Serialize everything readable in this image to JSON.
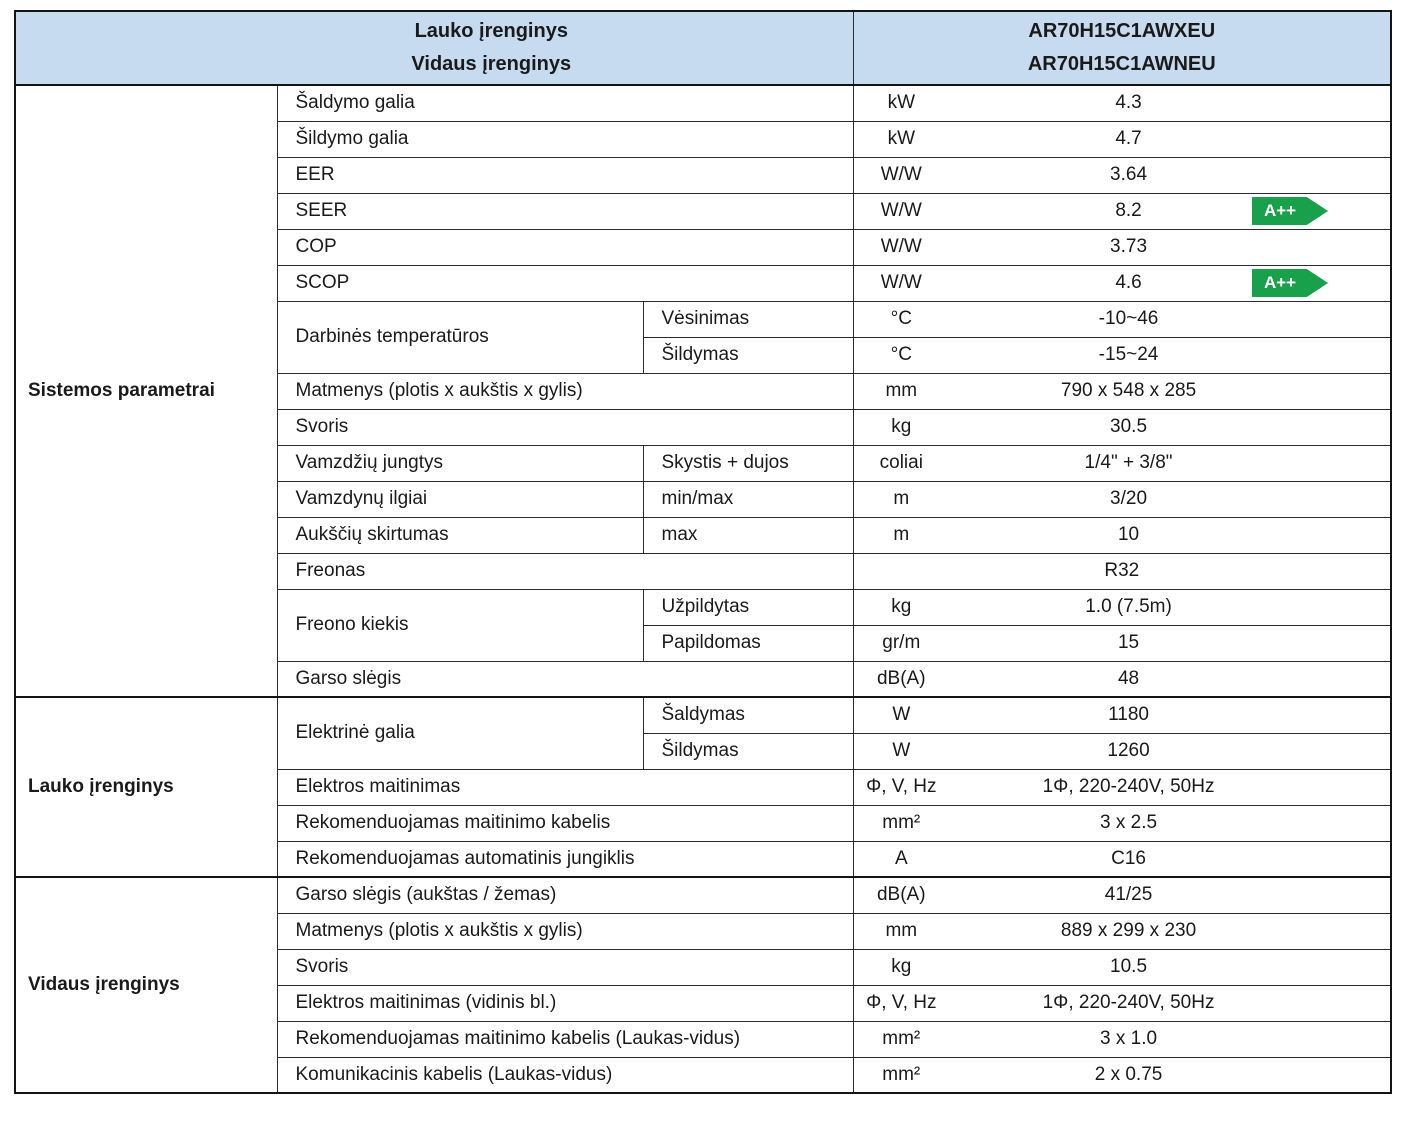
{
  "colors": {
    "header_bg": "#c6dbf0",
    "badge_green": "#18a04a"
  },
  "header": {
    "left_lines": [
      "Lauko įrenginys",
      "Vidaus įrenginys"
    ],
    "right_lines": [
      "AR70H15C1AWXEU",
      "AR70H15C1AWNEU"
    ]
  },
  "sections": [
    {
      "label": "Sistemos parametrai",
      "rows": [
        {
          "param": "Šaldymo galia",
          "unit": "kW",
          "value": "4.3"
        },
        {
          "param": "Šildymo galia",
          "unit": "kW",
          "value": "4.7"
        },
        {
          "param": "EER",
          "unit": "W/W",
          "value": "3.64"
        },
        {
          "param": "SEER",
          "unit": "W/W",
          "value": "8.2",
          "badge": "A++"
        },
        {
          "param": "COP",
          "unit": "W/W",
          "value": "3.73"
        },
        {
          "param": "SCOP",
          "unit": "W/W",
          "value": "4.6",
          "badge": "A++"
        },
        {
          "param": "Darbinės temperatūros",
          "sub": "Vėsinimas",
          "unit": "°C",
          "value": "-10~46"
        },
        {
          "sub": "Šildymas",
          "unit": "°C",
          "value": "-15~24"
        },
        {
          "param": "Matmenys (plotis x aukštis x gylis)",
          "unit": "mm",
          "value": "790 x 548 x 285"
        },
        {
          "param": "Svoris",
          "unit": "kg",
          "value": "30.5"
        },
        {
          "param": "Vamzdžių jungtys",
          "sub": "Skystis + dujos",
          "unit": "coliai",
          "value": "1/4\" + 3/8\""
        },
        {
          "param": "Vamzdynų ilgiai",
          "sub": "min/max",
          "unit": "m",
          "value": "3/20"
        },
        {
          "param": "Aukščių skirtumas",
          "sub": "max",
          "unit": "m",
          "value": "10"
        },
        {
          "param": "Freonas",
          "value": "R32"
        },
        {
          "param": "Freono kiekis",
          "sub": "Užpildytas",
          "unit": "kg",
          "value": "1.0 (7.5m)"
        },
        {
          "sub": "Papildomas",
          "unit": "gr/m",
          "value": "15"
        },
        {
          "param": "Garso slėgis",
          "unit": "dB(A)",
          "value": "48"
        }
      ]
    },
    {
      "label": "Lauko įrenginys",
      "rows": [
        {
          "param": "Elektrinė galia",
          "sub": "Šaldymas",
          "unit": "W",
          "value": "1180"
        },
        {
          "sub": "Šildymas",
          "unit": "W",
          "value": "1260"
        },
        {
          "param": "Elektros maitinimas",
          "unit": "Φ, V, Hz",
          "value": "1Φ, 220-240V, 50Hz"
        },
        {
          "param": "Rekomenduojamas maitinimo kabelis",
          "unit": "mm²",
          "value": "3 x 2.5"
        },
        {
          "param": "Rekomenduojamas automatinis jungiklis",
          "unit": "A",
          "value": "C16"
        }
      ]
    },
    {
      "label": "Vidaus įrenginys",
      "rows": [
        {
          "param": "Garso slėgis (aukštas / žemas)",
          "unit": "dB(A)",
          "value": "41/25"
        },
        {
          "param": "Matmenys (plotis x aukštis x gylis)",
          "unit": "mm",
          "value": "889 x 299 x 230"
        },
        {
          "param": "Svoris",
          "unit": "kg",
          "value": "10.5"
        },
        {
          "param": "Elektros maitinimas (vidinis bl.)",
          "unit": "Φ, V, Hz",
          "value": "1Φ, 220-240V, 50Hz"
        },
        {
          "param": "Rekomenduojamas maitinimo kabelis (Laukas-vidus)",
          "unit": "mm²",
          "value": "3 x 1.0"
        },
        {
          "param": "Komunikacinis kabelis (Laukas-vidus)",
          "unit": "mm²",
          "value": "2 x 0.75"
        }
      ]
    }
  ]
}
